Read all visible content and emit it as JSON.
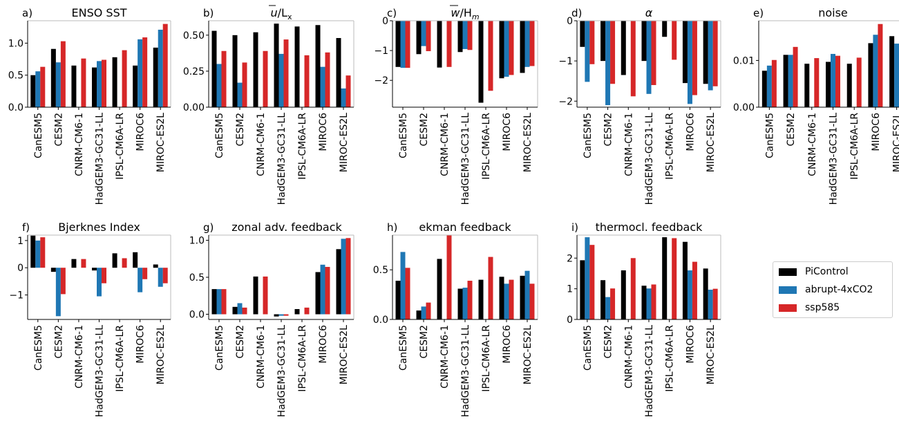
{
  "legend": {
    "items": [
      {
        "label": "PiControl",
        "color": "#000000"
      },
      {
        "label": "abrupt-4xCO2",
        "color": "#1f77b4"
      },
      {
        "label": "ssp585",
        "color": "#d62728"
      }
    ]
  },
  "chart_data": [
    {
      "type": "bar",
      "panel": "a)",
      "title": "ENSO SST",
      "categories": [
        "CanESM5",
        "CESM2",
        "CNRM-CM6-1",
        "HadGEM3-GC31-LL",
        "IPSL-CM6A-LR",
        "MIROC6",
        "MIROC-ES2L"
      ],
      "ylim": [
        0,
        1.35
      ],
      "yticks": [
        0.0,
        0.5,
        1.0
      ],
      "ytick_labels": [
        "0.0",
        "0.5",
        "1.0"
      ],
      "series": [
        {
          "name": "PiControl",
          "values": [
            0.5,
            0.91,
            0.65,
            0.62,
            0.78,
            0.65,
            0.93
          ]
        },
        {
          "name": "abrupt-4xCO2",
          "values": [
            0.56,
            0.7,
            null,
            0.72,
            null,
            1.06,
            1.21
          ]
        },
        {
          "name": "ssp585",
          "values": [
            0.63,
            1.03,
            0.76,
            0.74,
            0.89,
            1.09,
            1.3
          ]
        }
      ]
    },
    {
      "type": "bar",
      "panel": "b)",
      "title": "u/Lx",
      "categories": [
        "CanESM5",
        "CESM2",
        "CNRM-CM6-1",
        "HadGEM3-GC31-LL",
        "IPSL-CM6A-LR",
        "MIROC6",
        "MIROC-ES2L"
      ],
      "ylim": [
        0,
        0.6
      ],
      "yticks": [
        0.0,
        0.25,
        0.5
      ],
      "ytick_labels": [
        "0.00",
        "0.25",
        "0.50"
      ],
      "series": [
        {
          "name": "PiControl",
          "values": [
            0.53,
            0.5,
            0.52,
            0.58,
            0.56,
            0.57,
            0.48
          ]
        },
        {
          "name": "abrupt-4xCO2",
          "values": [
            0.3,
            0.17,
            null,
            0.37,
            null,
            0.28,
            0.13
          ]
        },
        {
          "name": "ssp585",
          "values": [
            0.39,
            0.31,
            0.39,
            0.47,
            0.36,
            0.38,
            0.22
          ]
        }
      ]
    },
    {
      "type": "bar",
      "panel": "c)",
      "title": "w/Hm",
      "categories": [
        "CanESM5",
        "CESM2",
        "CNRM-CM6-1",
        "HadGEM3-GC31-LL",
        "IPSL-CM6A-LR",
        "MIROC6",
        "MIROC-ES2L"
      ],
      "ylim": [
        -2.9,
        0
      ],
      "yticks": [
        0,
        -1,
        -2
      ],
      "ytick_labels": [
        "0",
        "−1",
        "−2"
      ],
      "series": [
        {
          "name": "PiControl",
          "values": [
            -1.55,
            -1.12,
            -1.57,
            -1.05,
            -2.75,
            -1.93,
            -1.75
          ]
        },
        {
          "name": "abrupt-4xCO2",
          "values": [
            -1.58,
            -0.85,
            null,
            -0.95,
            null,
            -1.88,
            -1.55
          ]
        },
        {
          "name": "ssp585",
          "values": [
            -1.58,
            -1.02,
            -1.55,
            -0.98,
            -2.35,
            -1.82,
            -1.52
          ]
        }
      ]
    },
    {
      "type": "bar",
      "panel": "d)",
      "title": "α",
      "categories": [
        "CanESM5",
        "CESM2",
        "CNRM-CM6-1",
        "HadGEM3-GC31-LL",
        "IPSL-CM6A-LR",
        "MIROC6",
        "MIROC-ES2L"
      ],
      "ylim": [
        -2.15,
        0
      ],
      "yticks": [
        0,
        -1,
        -2
      ],
      "ytick_labels": [
        "0",
        "−1",
        "−2"
      ],
      "series": [
        {
          "name": "PiControl",
          "values": [
            -0.65,
            -1.0,
            -1.35,
            -1.0,
            -0.4,
            -1.55,
            -1.57
          ]
        },
        {
          "name": "abrupt-4xCO2",
          "values": [
            -1.52,
            -2.1,
            null,
            -1.82,
            null,
            -2.07,
            -1.73
          ]
        },
        {
          "name": "ssp585",
          "values": [
            -1.08,
            -1.57,
            -1.88,
            -1.6,
            -0.97,
            -1.85,
            -1.63
          ]
        }
      ]
    },
    {
      "type": "bar",
      "panel": "e)",
      "title": "noise",
      "categories": [
        "CanESM5",
        "CESM2",
        "CNRM-CM6-1",
        "HadGEM3-GC31-LL",
        "IPSL-CM6A-LR",
        "MIROC6",
        "MIROC-ES2L"
      ],
      "ylim": [
        0,
        0.0185
      ],
      "yticks": [
        0.0,
        0.01
      ],
      "ytick_labels": [
        "0.00",
        "0.01"
      ],
      "series": [
        {
          "name": "PiControl",
          "values": [
            0.0078,
            0.0112,
            0.0093,
            0.0097,
            0.0093,
            0.0137,
            0.0152
          ]
        },
        {
          "name": "abrupt-4xCO2",
          "values": [
            0.0089,
            0.0112,
            null,
            0.0114,
            null,
            0.0155,
            0.0136
          ]
        },
        {
          "name": "ssp585",
          "values": [
            0.0101,
            0.0129,
            0.0105,
            0.011,
            0.0106,
            0.0178,
            null
          ]
        }
      ]
    },
    {
      "type": "bar",
      "panel": "f)",
      "title": "Bjerknes Index",
      "categories": [
        "CanESM5",
        "CESM2",
        "CNRM-CM6-1",
        "HadGEM3-GC31-LL",
        "IPSL-CM6A-LR",
        "MIROC6",
        "MIROC-ES2L"
      ],
      "ylim": [
        -1.9,
        1.2
      ],
      "yticks": [
        1,
        0,
        -1
      ],
      "ytick_labels": [
        "1",
        "0",
        "−1"
      ],
      "series": [
        {
          "name": "PiControl",
          "values": [
            1.18,
            -0.15,
            0.32,
            -0.1,
            0.53,
            0.57,
            0.12
          ]
        },
        {
          "name": "abrupt-4xCO2",
          "values": [
            1.0,
            -1.78,
            null,
            -1.05,
            null,
            -0.9,
            -0.7
          ]
        },
        {
          "name": "ssp585",
          "values": [
            1.12,
            -0.97,
            0.32,
            -0.57,
            0.35,
            -0.42,
            -0.57
          ]
        }
      ]
    },
    {
      "type": "bar",
      "panel": "g)",
      "title": "zonal adv. feedback",
      "categories": [
        "CanESM5",
        "CESM2",
        "CNRM-CM6-1",
        "HadGEM3-GC31-LL",
        "IPSL-CM6A-LR",
        "MIROC6",
        "MIROC-ES2L"
      ],
      "ylim": [
        -0.07,
        1.07
      ],
      "yticks": [
        0.0,
        0.5,
        1.0
      ],
      "ytick_labels": [
        "0.0",
        "0.5",
        "1.0"
      ],
      "series": [
        {
          "name": "PiControl",
          "values": [
            0.34,
            0.1,
            0.51,
            -0.03,
            0.07,
            0.57,
            0.88
          ]
        },
        {
          "name": "abrupt-4xCO2",
          "values": [
            0.34,
            0.15,
            null,
            -0.02,
            null,
            0.67,
            1.02
          ]
        },
        {
          "name": "ssp585",
          "values": [
            0.34,
            0.09,
            0.51,
            -0.02,
            0.09,
            0.64,
            1.03
          ]
        }
      ]
    },
    {
      "type": "bar",
      "panel": "h)",
      "title": "ekman feedback",
      "categories": [
        "CanESM5",
        "CESM2",
        "CNRM-CM6-1",
        "HadGEM3-GC31-LL",
        "IPSL-CM6A-LR",
        "MIROC6",
        "MIROC-ES2L"
      ],
      "ylim": [
        0,
        0.85
      ],
      "yticks": [
        0.0,
        0.5
      ],
      "ytick_labels": [
        "0.0",
        "0.5"
      ],
      "series": [
        {
          "name": "PiControl",
          "values": [
            0.39,
            0.09,
            0.61,
            0.31,
            0.4,
            0.43,
            0.44
          ]
        },
        {
          "name": "abrupt-4xCO2",
          "values": [
            0.68,
            0.13,
            null,
            0.32,
            null,
            0.36,
            0.49
          ]
        },
        {
          "name": "ssp585",
          "values": [
            0.52,
            0.17,
            0.85,
            0.39,
            0.63,
            0.4,
            0.36
          ]
        }
      ]
    },
    {
      "type": "bar",
      "panel": "i)",
      "title": "thermocl. feedback",
      "categories": [
        "CanESM5",
        "CESM2",
        "CNRM-CM6-1",
        "HadGEM3-GC31-LL",
        "IPSL-CM6A-LR",
        "MIROC6",
        "MIROC-ES2L"
      ],
      "ylim": [
        0,
        2.75
      ],
      "yticks": [
        0,
        1,
        2
      ],
      "ytick_labels": [
        "0",
        "1",
        "2"
      ],
      "series": [
        {
          "name": "PiControl",
          "values": [
            1.93,
            1.28,
            1.6,
            1.1,
            2.68,
            2.53,
            1.66
          ]
        },
        {
          "name": "abrupt-4xCO2",
          "values": [
            2.68,
            0.73,
            null,
            1.01,
            null,
            1.6,
            0.97
          ]
        },
        {
          "name": "ssp585",
          "values": [
            2.43,
            1.01,
            2.0,
            1.14,
            2.65,
            1.88,
            1.0
          ]
        }
      ]
    }
  ]
}
